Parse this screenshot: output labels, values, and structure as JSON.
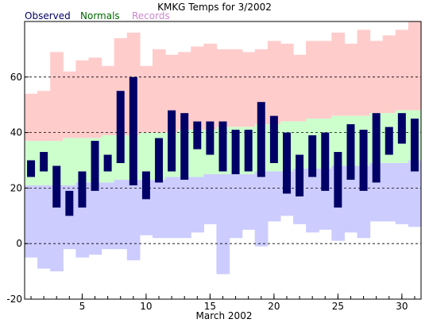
{
  "chart_data": {
    "type": "bar",
    "title": "KMKG Temps for 3/2002",
    "xlabel": "March 2002",
    "ylabel": "",
    "legend_placement": "top-left",
    "legend": {
      "observed": "Observed",
      "normals": "Normals",
      "records": "Records"
    },
    "colors": {
      "observed": "#000066",
      "normals": "#ccffcc",
      "records": "#ffcccc",
      "record_low_band": "#ccccff",
      "legend_observed": "#000066",
      "legend_normals": "#006600",
      "legend_records": "#cc88cc"
    },
    "ylim": [
      -20,
      80
    ],
    "xlim": [
      0.5,
      31.5
    ],
    "y_ticks": [
      -20,
      0,
      20,
      40,
      60
    ],
    "x_ticks": [
      5,
      10,
      15,
      20,
      25,
      30
    ],
    "y_gridlines": [
      0,
      20,
      40,
      60
    ],
    "days": [
      1,
      2,
      3,
      4,
      5,
      6,
      7,
      8,
      9,
      10,
      11,
      12,
      13,
      14,
      15,
      16,
      17,
      18,
      19,
      20,
      21,
      22,
      23,
      24,
      25,
      26,
      27,
      28,
      29,
      30,
      31
    ],
    "record_high": [
      54,
      55,
      69,
      62,
      66,
      67,
      64,
      74,
      76,
      64,
      70,
      68,
      69,
      71,
      72,
      70,
      70,
      69,
      70,
      73,
      72,
      68,
      73,
      73,
      76,
      72,
      77,
      73,
      75,
      77,
      80
    ],
    "normal_high": [
      37,
      37,
      37,
      38,
      38,
      38,
      39,
      39,
      39,
      40,
      40,
      40,
      41,
      41,
      41,
      42,
      42,
      42,
      43,
      43,
      44,
      44,
      45,
      45,
      46,
      46,
      46,
      47,
      47,
      48,
      48
    ],
    "normal_low": [
      21,
      21,
      21,
      21,
      22,
      22,
      22,
      23,
      23,
      23,
      23,
      24,
      24,
      24,
      25,
      25,
      25,
      25,
      26,
      26,
      26,
      27,
      27,
      27,
      28,
      28,
      28,
      29,
      29,
      29,
      30
    ],
    "record_low": [
      -5,
      -9,
      -10,
      -2,
      -5,
      -4,
      -2,
      -2,
      -6,
      3,
      2,
      2,
      2,
      4,
      7,
      -11,
      2,
      5,
      -1,
      8,
      10,
      7,
      4,
      5,
      1,
      4,
      2,
      8,
      8,
      7,
      6
    ],
    "observed_high": [
      30,
      33,
      28,
      19,
      26,
      37,
      32,
      55,
      60,
      26,
      38,
      48,
      47,
      44,
      44,
      44,
      41,
      41,
      51,
      46,
      40,
      32,
      39,
      40,
      33,
      43,
      41,
      47,
      42,
      47,
      45
    ],
    "observed_low": [
      24,
      26,
      13,
      10,
      13,
      19,
      26,
      29,
      21,
      16,
      22,
      26,
      23,
      34,
      32,
      26,
      25,
      26,
      24,
      29,
      18,
      17,
      24,
      19,
      13,
      23,
      19,
      22,
      32,
      36,
      26
    ]
  }
}
